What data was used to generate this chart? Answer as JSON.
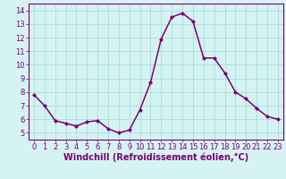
{
  "x": [
    0,
    1,
    2,
    3,
    4,
    5,
    6,
    7,
    8,
    9,
    10,
    11,
    12,
    13,
    14,
    15,
    16,
    17,
    18,
    19,
    20,
    21,
    22,
    23
  ],
  "y": [
    7.8,
    7.0,
    5.9,
    5.7,
    5.5,
    5.8,
    5.9,
    5.3,
    5.0,
    5.2,
    6.7,
    8.7,
    11.9,
    13.5,
    13.8,
    13.2,
    10.5,
    10.5,
    9.4,
    8.0,
    7.5,
    6.8,
    6.2,
    6.0
  ],
  "line_color": "#7B0070",
  "marker": "D",
  "marker_size": 2.0,
  "bg_color": "#d5f3f3",
  "grid_color": "#aadddd",
  "xlabel": "Windchill (Refroidissement éolien,°C)",
  "ylim": [
    4.5,
    14.5
  ],
  "yticks": [
    5,
    6,
    7,
    8,
    9,
    10,
    11,
    12,
    13,
    14
  ],
  "xticks": [
    0,
    1,
    2,
    3,
    4,
    5,
    6,
    7,
    8,
    9,
    10,
    11,
    12,
    13,
    14,
    15,
    16,
    17,
    18,
    19,
    20,
    21,
    22,
    23
  ],
  "tick_fontsize": 6.0,
  "xlabel_fontsize": 7.0,
  "line_width": 1.1,
  "spine_color": "#7B0070"
}
